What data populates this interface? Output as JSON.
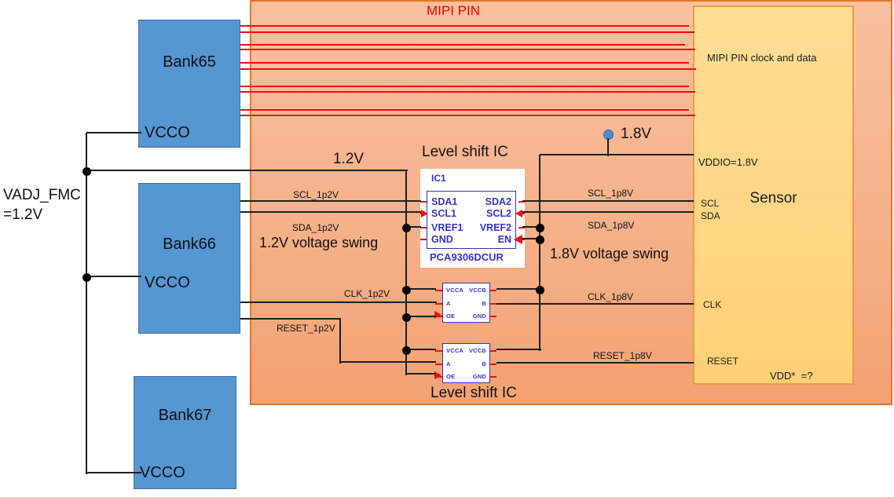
{
  "colors": {
    "mipi_region_fill": "#F5B18A",
    "mipi_region_border": "#E2742A",
    "mipi_lane_red": "#EE0E0E",
    "bank_fill": "#5596D3",
    "bank_border": "#41719C",
    "sensor_fill": "#FFD584",
    "sensor_border": "#E3A33D",
    "ic_text_blue": "#3434C8",
    "wire_black": "#1F1F1F",
    "title_red": "#FE0000",
    "ball_blue": "#4E8ECD"
  },
  "region": {
    "title": "MIPI PIN"
  },
  "vadj": {
    "line1": "VADJ_FMC",
    "line2": "=1.2V"
  },
  "banks": [
    {
      "name": "Bank65",
      "pin": "VCCO"
    },
    {
      "name": "Bank66",
      "pin": "VCCO"
    },
    {
      "name": "Bank67",
      "pin": "VCCO"
    }
  ],
  "sensor": {
    "title": "Sensor",
    "note": "MIPI PIN clock and data",
    "vddio": "VDDIO=1.8V",
    "pins": {
      "scl": "SCL",
      "sda": "SDA",
      "clk": "CLK",
      "reset": "RESET"
    },
    "vdd": "VDD*  =?"
  },
  "level_shift": {
    "title_top": "Level shift IC",
    "title_bottom": "Level shift IC",
    "ic1": {
      "ref": "IC1",
      "part": "PCA9306DCUR",
      "pins_left": [
        "SDA1",
        "SCL1",
        "VREF1",
        "GND"
      ],
      "pins_right": [
        "SDA2",
        "SCL2",
        "VREF2",
        "EN"
      ]
    },
    "small": {
      "pins_left": [
        "VCCA",
        "A",
        "OE"
      ],
      "pins_right": [
        "VCCB",
        "B",
        "GND"
      ]
    }
  },
  "nets": {
    "v12": "1.2V",
    "v18": "1.8V",
    "swing12": "1.2V voltage swing",
    "swing18": "1.8V voltage swing",
    "scl12": "SCL_1p2V",
    "sda12": "SDA_1p2V",
    "clk12": "CLK_1p2V",
    "reset12": "RESET_1p2V",
    "scl18": "SCL_1p8V",
    "sda18": "SDA_1p8V",
    "clk18": "CLK_1p8V",
    "reset18": "RESET_1p8V"
  }
}
